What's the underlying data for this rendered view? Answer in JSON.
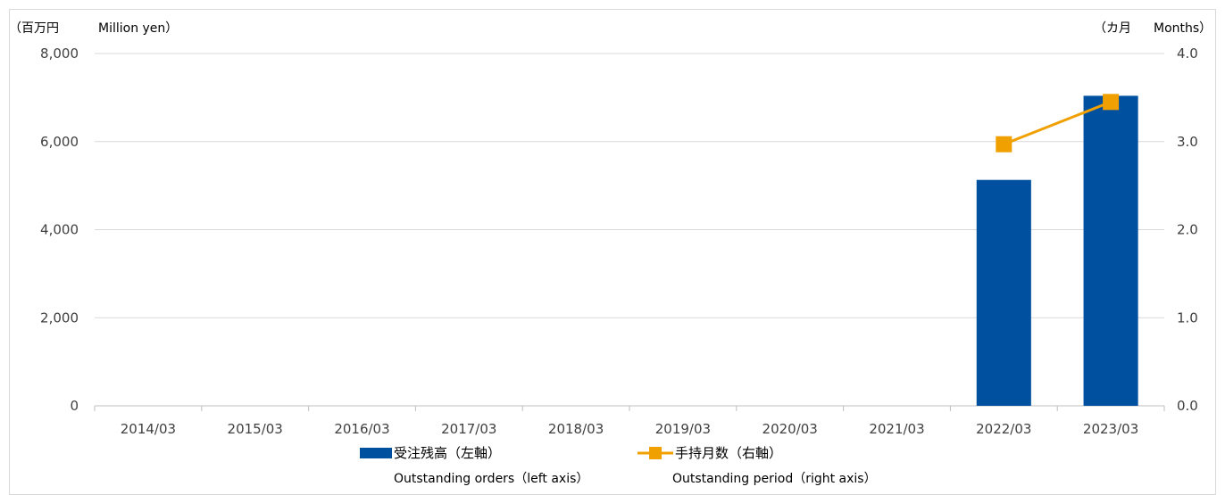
{
  "chart_data": {
    "type": "bar",
    "categories": [
      "2014/03",
      "2015/03",
      "2016/03",
      "2017/03",
      "2018/03",
      "2019/03",
      "2020/03",
      "2021/03",
      "2022/03",
      "2023/03"
    ],
    "series": [
      {
        "name": "受注残高（左軸）",
        "subname": "Outstanding orders（left axis）",
        "type": "bar",
        "axis": "left",
        "color": "#0050a0",
        "values": [
          null,
          null,
          null,
          null,
          null,
          null,
          null,
          null,
          5130,
          7040
        ]
      },
      {
        "name": "手持月数（右軸）",
        "subname": "Outstanding period（right axis）",
        "type": "line",
        "axis": "right",
        "color": "#f0a000",
        "values": [
          null,
          null,
          null,
          null,
          null,
          null,
          null,
          null,
          2.97,
          3.45
        ]
      }
    ],
    "left_axis": {
      "unit_jp": "（百万円",
      "unit_en": "Million yen）",
      "ylim": [
        0,
        8000
      ],
      "ticks": [
        "0",
        "2,000",
        "4,000",
        "6,000",
        "8,000"
      ]
    },
    "right_axis": {
      "unit_jp": "（カ月",
      "unit_en": "Months）",
      "ylim": [
        0,
        4
      ],
      "ticks": [
        "0.0",
        "1.0",
        "2.0",
        "3.0",
        "4.0"
      ]
    },
    "grid": true,
    "legend_position": "bottom"
  }
}
